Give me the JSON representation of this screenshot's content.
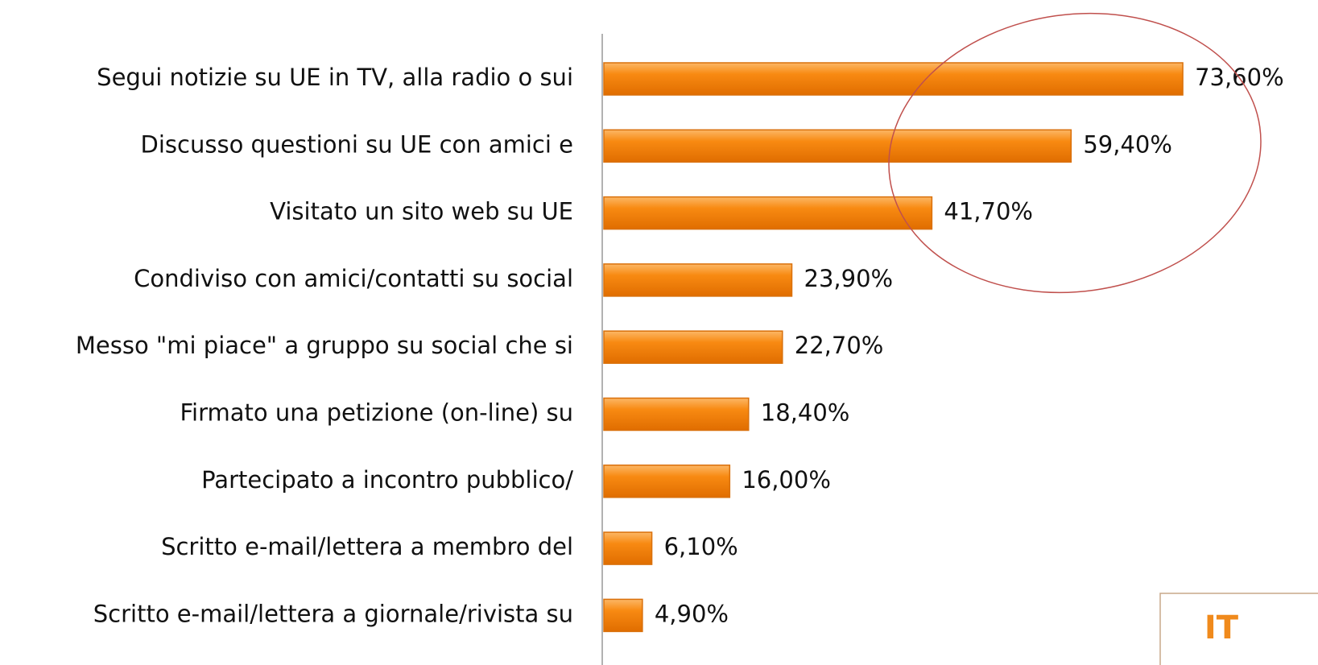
{
  "chart_data": {
    "type": "bar",
    "orientation": "horizontal",
    "categories": [
      "Segui notizie su UE in TV, alla radio o sui",
      "Discusso questioni su UE con amici e",
      "Visitato un sito web su UE",
      "Condiviso con amici/contatti su social",
      "Messo \"mi piace\" a gruppo su social che si",
      "Firmato una petizione (on-line) su",
      "Partecipato a incontro pubblico/",
      "Scritto e-mail/lettera a membro del",
      "Scritto e-mail/lettera a giornale/rivista su"
    ],
    "values": [
      73.6,
      59.4,
      41.7,
      23.9,
      22.7,
      18.4,
      16.0,
      6.1,
      4.9
    ],
    "value_labels": [
      "73,60%",
      "59,40%",
      "41,70%",
      "23,90%",
      "22,70%",
      "18,40%",
      "16,00%",
      "6,10%",
      "4,90%"
    ],
    "color": "#f88a12"
  },
  "badge": "IT"
}
